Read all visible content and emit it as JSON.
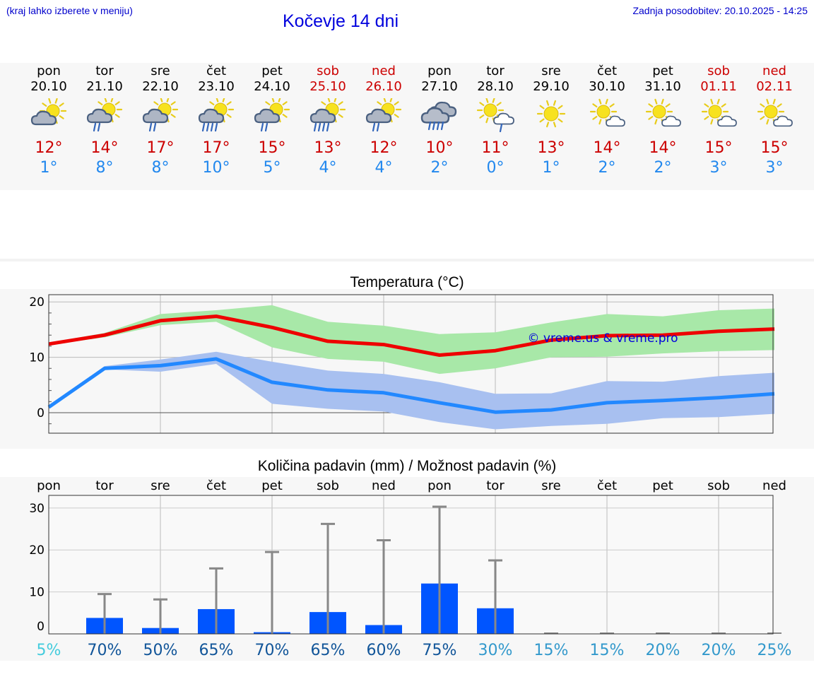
{
  "header": {
    "menu_hint": "(kraj lahko izberete v meniju)",
    "title": "Kočevje 14 dni",
    "updated": "Zadnja posodobitev: 20.10.2025 - 14:25"
  },
  "colors": {
    "link": "#0000cc",
    "max": "#cc0000",
    "min": "#2288ee",
    "bar": "#0055ff"
  },
  "days": [
    {
      "name": "pon",
      "date": "20.10",
      "weekend": false,
      "icon": "partly-cloudy",
      "max": "12°",
      "min": "1°"
    },
    {
      "name": "tor",
      "date": "21.10",
      "weekend": false,
      "icon": "partly-cloudy-rain",
      "max": "14°",
      "min": "8°"
    },
    {
      "name": "sre",
      "date": "22.10",
      "weekend": false,
      "icon": "partly-cloudy-rain",
      "max": "17°",
      "min": "8°"
    },
    {
      "name": "čet",
      "date": "23.10",
      "weekend": false,
      "icon": "partly-cloudy-heavy-rain",
      "max": "17°",
      "min": "10°"
    },
    {
      "name": "pet",
      "date": "24.10",
      "weekend": false,
      "icon": "partly-cloudy-rain",
      "max": "15°",
      "min": "5°"
    },
    {
      "name": "sob",
      "date": "25.10",
      "weekend": true,
      "icon": "partly-cloudy-heavy-rain",
      "max": "13°",
      "min": "4°"
    },
    {
      "name": "ned",
      "date": "26.10",
      "weekend": true,
      "icon": "partly-cloudy-rain",
      "max": "12°",
      "min": "4°"
    },
    {
      "name": "pon",
      "date": "27.10",
      "weekend": false,
      "icon": "cloudy-heavy-rain",
      "max": "10°",
      "min": "2°"
    },
    {
      "name": "tor",
      "date": "28.10",
      "weekend": false,
      "icon": "sun-cloud-light-rain",
      "max": "11°",
      "min": "0°"
    },
    {
      "name": "sre",
      "date": "29.10",
      "weekend": false,
      "icon": "sunny",
      "max": "13°",
      "min": "1°"
    },
    {
      "name": "čet",
      "date": "30.10",
      "weekend": false,
      "icon": "mostly-sunny",
      "max": "14°",
      "min": "2°"
    },
    {
      "name": "pet",
      "date": "31.10",
      "weekend": false,
      "icon": "mostly-sunny",
      "max": "14°",
      "min": "2°"
    },
    {
      "name": "sob",
      "date": "01.11",
      "weekend": true,
      "icon": "mostly-sunny",
      "max": "15°",
      "min": "3°"
    },
    {
      "name": "ned",
      "date": "02.11",
      "weekend": true,
      "icon": "mostly-sunny",
      "max": "15°",
      "min": "3°"
    }
  ],
  "chart_data": [
    {
      "type": "line",
      "title": "Temperatura (°C)",
      "watermark": "© vreme.us & vreme.pro",
      "x": [
        0,
        1,
        2,
        3,
        4,
        5,
        6,
        7,
        8,
        9,
        10,
        11,
        12,
        13
      ],
      "ylim": [
        -3.7,
        21.3
      ],
      "yticks": [
        0,
        10,
        20
      ],
      "series": [
        {
          "name": "max",
          "color": "#ee0000",
          "values": [
            12.4,
            14.0,
            16.6,
            17.4,
            15.4,
            12.9,
            12.3,
            10.4,
            11.2,
            13.1,
            13.9,
            14.0,
            14.7,
            15.1
          ],
          "low": [
            12.2,
            13.6,
            15.8,
            16.4,
            11.8,
            9.7,
            9.2,
            7.0,
            8.0,
            10.0,
            10.1,
            10.7,
            11.1,
            11.3
          ],
          "high": [
            12.6,
            14.4,
            17.8,
            18.5,
            19.4,
            16.4,
            15.7,
            14.2,
            14.5,
            16.3,
            17.8,
            17.4,
            18.5,
            18.8
          ]
        },
        {
          "name": "min",
          "color": "#2288ff",
          "values": [
            1.0,
            8.0,
            8.5,
            9.7,
            5.5,
            4.1,
            3.6,
            1.8,
            0.1,
            0.5,
            1.8,
            2.2,
            2.7,
            3.4
          ],
          "low": [
            0.8,
            7.8,
            7.4,
            8.8,
            1.6,
            0.7,
            0.2,
            -1.7,
            -3.0,
            -2.4,
            -2.0,
            -1.0,
            -0.8,
            -0.2
          ],
          "high": [
            1.2,
            8.4,
            9.6,
            11.0,
            9.2,
            7.6,
            7.0,
            5.5,
            3.4,
            3.5,
            5.7,
            5.6,
            6.6,
            7.2
          ]
        }
      ]
    },
    {
      "type": "bar",
      "title": "Količina padavin (mm) / Možnost padavin (%)",
      "categories": [
        "pon",
        "tor",
        "sre",
        "čet",
        "pet",
        "sob",
        "ned",
        "pon",
        "tor",
        "sre",
        "čet",
        "pet",
        "sob",
        "ned"
      ],
      "values": [
        0,
        3.8,
        1.4,
        5.9,
        0.4,
        5.2,
        2.1,
        12.0,
        6.1,
        0,
        0,
        0,
        0,
        0
      ],
      "max_values": [
        0,
        9.5,
        8.2,
        15.6,
        19.5,
        26.2,
        22.3,
        30.3,
        17.5,
        0.1,
        0.1,
        0.2,
        0.2,
        0.1
      ],
      "probabilities": [
        "5%",
        "70%",
        "50%",
        "65%",
        "70%",
        "65%",
        "60%",
        "75%",
        "30%",
        "15%",
        "15%",
        "20%",
        "20%",
        "25%"
      ],
      "prob_colors": [
        "#44ccdd",
        "#115599",
        "#115599",
        "#115599",
        "#115599",
        "#115599",
        "#115599",
        "#115599",
        "#3399cc",
        "#3399cc",
        "#3399cc",
        "#3399cc",
        "#3399cc",
        "#3399cc"
      ],
      "ylim": [
        0,
        33
      ],
      "yticks": [
        0,
        10,
        20,
        30
      ]
    }
  ]
}
